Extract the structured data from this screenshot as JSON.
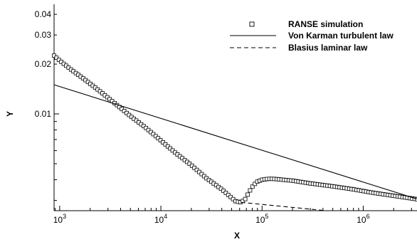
{
  "chart_data": {
    "type": "scatter",
    "title": "",
    "xlabel": "X",
    "ylabel": "Y",
    "xscale": "log",
    "yscale": "log",
    "xlim": [
      880,
      3400000
    ],
    "ylim": [
      0.0026,
      0.046
    ],
    "grid": false,
    "legend_position": "top-right",
    "x_ticks": [
      {
        "value": 1000,
        "mantissa": "10",
        "exponent": "3"
      },
      {
        "value": 10000,
        "mantissa": "10",
        "exponent": "4"
      },
      {
        "value": 100000,
        "mantissa": "10",
        "exponent": "5"
      },
      {
        "value": 1000000,
        "mantissa": "10",
        "exponent": "6"
      }
    ],
    "y_ticks": [
      {
        "value": 0.01,
        "label": "0.01"
      },
      {
        "value": 0.02,
        "label": "0.02"
      },
      {
        "value": 0.03,
        "label": "0.03"
      },
      {
        "value": 0.04,
        "label": "0.04"
      }
    ],
    "series": [
      {
        "name": "RANSE simulation",
        "style": "square-markers",
        "x": [
          880,
          1000,
          1300,
          1800,
          2500,
          3500,
          5000,
          7000,
          10000,
          14000,
          20000,
          28000,
          40000,
          55000,
          62000,
          68000,
          75000,
          82000,
          90000,
          100000,
          115000,
          130000,
          160000,
          200000,
          300000,
          500000,
          800000,
          1200000,
          2000000,
          3400000
        ],
        "y": [
          0.0225,
          0.021,
          0.0185,
          0.016,
          0.0137,
          0.0116,
          0.0097,
          0.0083,
          0.0069,
          0.0058,
          0.0049,
          0.0041,
          0.0035,
          0.00296,
          0.00292,
          0.00305,
          0.0034,
          0.0037,
          0.0039,
          0.004,
          0.00405,
          0.00405,
          0.004,
          0.00395,
          0.0038,
          0.00365,
          0.0035,
          0.00335,
          0.0032,
          0.00305
        ]
      },
      {
        "name": "Von Karman turbulent law",
        "style": "solid",
        "x": [
          880,
          3400000
        ],
        "y": [
          0.015,
          0.00306
        ]
      },
      {
        "name": "Blasius laminar law",
        "style": "dashed",
        "x": [
          62000,
          430000
        ],
        "y": [
          0.00292,
          0.0026
        ]
      }
    ]
  }
}
